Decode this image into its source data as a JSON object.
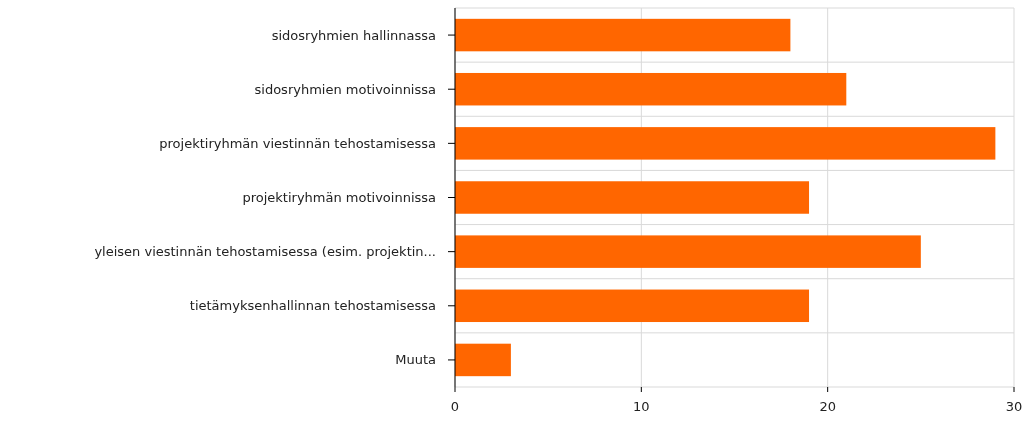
{
  "chart_data": {
    "type": "bar",
    "orientation": "horizontal",
    "categories": [
      "sidosryhmien hallinnassa",
      "sidosryhmien motivoinnissa",
      "projektiryhmän viestinnän tehostamisessa",
      "projektiryhmän motivoinnissa",
      "yleisen viestinnän tehostamisessa (esim. projektin...",
      "tietämyksenhallinnan tehostamisessa",
      "Muuta"
    ],
    "values": [
      18,
      21,
      29,
      19,
      25,
      19,
      3
    ],
    "color": "#ff6600",
    "xlim": [
      0,
      30
    ],
    "xticks": [
      0,
      10,
      20,
      30
    ],
    "grid": true
  }
}
